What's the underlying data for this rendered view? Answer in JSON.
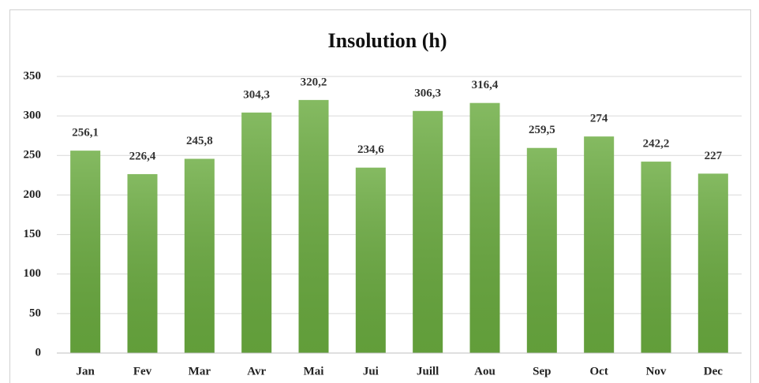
{
  "chart_data": {
    "type": "bar",
    "title": "Insolution (h)",
    "categories": [
      "Jan",
      "Fev",
      "Mar",
      "Avr",
      "Mai",
      "Jui",
      "Juill",
      "Aou",
      "Sep",
      "Oct",
      "Nov",
      "Dec"
    ],
    "values": [
      256.1,
      226.4,
      245.8,
      304.3,
      320.2,
      234.6,
      306.3,
      316.4,
      259.5,
      274,
      242.2,
      227
    ],
    "value_labels": [
      "256,1",
      "226,4",
      "245,8",
      "304,3",
      "320,2",
      "234,6",
      "306,3",
      "316,4",
      "259,5",
      "274",
      "242,2",
      "227"
    ],
    "color": "#6aab3f",
    "ylim": [
      0,
      350
    ],
    "yticks": [
      0,
      50,
      100,
      150,
      200,
      250,
      300,
      350
    ],
    "grid": true
  }
}
